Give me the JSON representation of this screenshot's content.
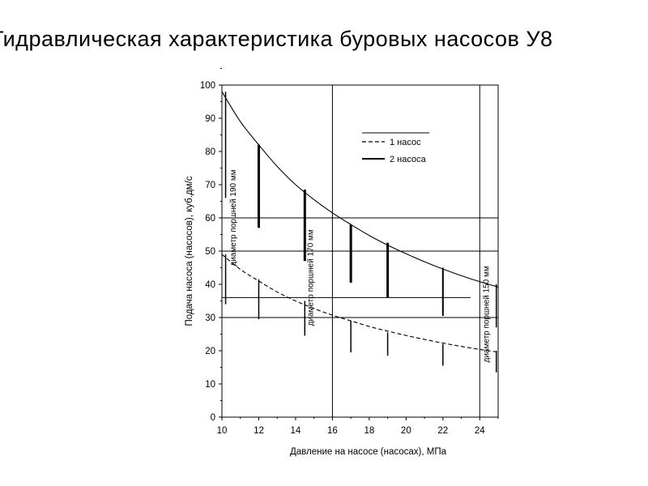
{
  "title": "Гидравлическая характеристика буровых насосов У8",
  "chart_data": {
    "type": "line",
    "xlabel": "Давление на насосе (насосах), МПа",
    "ylabel": "Подача насоса (насосов), куб.дм/с",
    "xlim": [
      10,
      25
    ],
    "ylim": [
      0,
      100
    ],
    "x_ticks": [
      "10",
      "12",
      "14",
      "16",
      "18",
      "20",
      "22",
      "24"
    ],
    "y_ticks": [
      "0",
      "10",
      "20",
      "30",
      "40",
      "50",
      "60",
      "70",
      "80",
      "90",
      "100"
    ],
    "grid": {
      "vertical": [
        16,
        24
      ],
      "horizontal": [
        30,
        36,
        50,
        60
      ]
    },
    "legend": {
      "position": "top-right",
      "entries": [
        {
          "label": "1 насос",
          "style": "dashed"
        },
        {
          "label": "2 насоса",
          "style": "solid"
        }
      ]
    },
    "series": [
      {
        "name": "2 насоса",
        "style": "solid",
        "x": [
          10,
          11,
          12,
          13,
          14,
          15,
          16,
          17,
          18,
          19,
          20,
          21,
          22,
          23,
          24,
          25
        ],
        "y": [
          98,
          89,
          82,
          75.5,
          70,
          65.5,
          61.5,
          58,
          54.7,
          51.8,
          49.2,
          46.8,
          44.6,
          42.6,
          40.8,
          39.2
        ]
      },
      {
        "name": "1 насос",
        "style": "dashed",
        "x": [
          10,
          11,
          12,
          13,
          14,
          15,
          16,
          17,
          18,
          19,
          20,
          21,
          22,
          23,
          24,
          25
        ],
        "y": [
          49,
          44.5,
          41,
          37.7,
          35,
          32.7,
          30.7,
          29,
          27.3,
          25.9,
          24.6,
          23.4,
          22.3,
          21.3,
          20.4,
          19.6
        ]
      }
    ],
    "ranges": [
      {
        "x": 10.2,
        "y_low": 66,
        "y_high": 98,
        "width": 1.5
      },
      {
        "x": 10.2,
        "y_low": 34,
        "y_high": 49,
        "width": 1.5
      },
      {
        "x": 12,
        "y_low": 57,
        "y_high": 82,
        "width": 3
      },
      {
        "x": 12,
        "y_low": 29.5,
        "y_high": 41.5,
        "width": 1.5
      },
      {
        "x": 14.5,
        "y_low": 47,
        "y_high": 68.5,
        "width": 3
      },
      {
        "x": 14.5,
        "y_low": 24.5,
        "y_high": 35,
        "width": 1.5
      },
      {
        "x": 17,
        "y_low": 40.5,
        "y_high": 58,
        "width": 3
      },
      {
        "x": 17,
        "y_low": 19.5,
        "y_high": 29,
        "width": 1.5
      },
      {
        "x": 19,
        "y_low": 36,
        "y_high": 52.5,
        "width": 3
      },
      {
        "x": 19,
        "y_low": 18.5,
        "y_high": 25.5,
        "width": 1.5
      },
      {
        "x": 22,
        "y_low": 30.5,
        "y_high": 45,
        "width": 2
      },
      {
        "x": 22,
        "y_low": 15.5,
        "y_high": 22,
        "width": 1.5
      },
      {
        "x": 24.9,
        "y_low": 27,
        "y_high": 40,
        "width": 1.5
      },
      {
        "x": 24.9,
        "y_low": 13.5,
        "y_high": 20,
        "width": 1.5
      }
    ],
    "annotations": [
      {
        "text": "диаметр поршней  190 мм",
        "x": 10.75,
        "y": 60
      },
      {
        "text": "диаметр поршней  170 мм",
        "x": 14.95,
        "y": 42
      },
      {
        "text": "диаметр поршней  150 мм",
        "x": 24.5,
        "y": 31
      }
    ]
  }
}
